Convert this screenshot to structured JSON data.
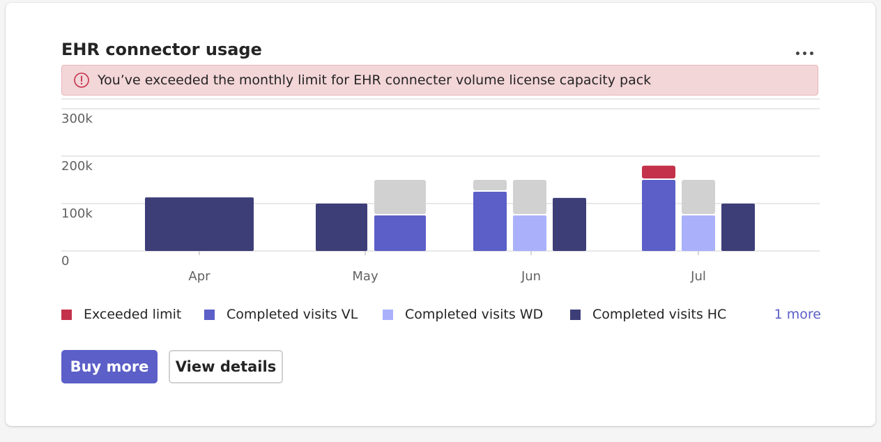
{
  "card": {
    "title": "EHR connector usage",
    "more_menu_icon": "more-horizontal-icon"
  },
  "alert": {
    "icon": "error-circle-icon",
    "text": "You’ve exceeded the monthly limit for EHR connecter volume license capacity pack",
    "background": "#f3d6d8",
    "icon_color": "#c4314b"
  },
  "chart_data": {
    "type": "bar",
    "stacked": true,
    "categories": [
      "Apr",
      "May",
      "Jun",
      "Jul"
    ],
    "y_tick_labels": [
      "0",
      "100k",
      "200k",
      "300k"
    ],
    "ylim": [
      0,
      300000
    ],
    "grid": true,
    "groups": [
      {
        "category": "Apr",
        "bars": [
          {
            "series": "Completed visits HC",
            "value": 113000,
            "wide": true
          }
        ]
      },
      {
        "category": "May",
        "bars": [
          {
            "series": "Completed visits HC",
            "value": 100000
          },
          {
            "series": "Completed visits VL",
            "value": 75000,
            "remaining": 75000
          }
        ]
      },
      {
        "category": "Jun",
        "bars": [
          {
            "series": "Completed visits VL",
            "value": 125000,
            "remaining": 25000
          },
          {
            "series": "Completed visits WD",
            "value": 75000,
            "remaining": 75000
          },
          {
            "series": "Completed visits HC",
            "value": 112000
          }
        ]
      },
      {
        "category": "Jul",
        "bars": [
          {
            "series": "Completed visits VL",
            "value": 150000,
            "exceeded": 30000
          },
          {
            "series": "Completed visits WD",
            "value": 75000,
            "remaining": 75000
          },
          {
            "series": "Completed visits HC",
            "value": 100000
          }
        ]
      }
    ],
    "colors": {
      "Exceeded limit": "#c4314b",
      "Completed visits VL": "#5b5fc7",
      "Completed visits WD": "#aab1fa",
      "Completed visits HC": "#3d3e78",
      "remaining": "#d1d1d1"
    },
    "legend": {
      "placement": "bottom",
      "items": [
        "Exceeded limit",
        "Completed visits VL",
        "Completed visits WD",
        "Completed visits HC"
      ],
      "more_label": "1 more"
    }
  },
  "buttons": {
    "primary_label": "Buy more",
    "secondary_label": "View details",
    "primary_color": "#5b5fc7"
  }
}
